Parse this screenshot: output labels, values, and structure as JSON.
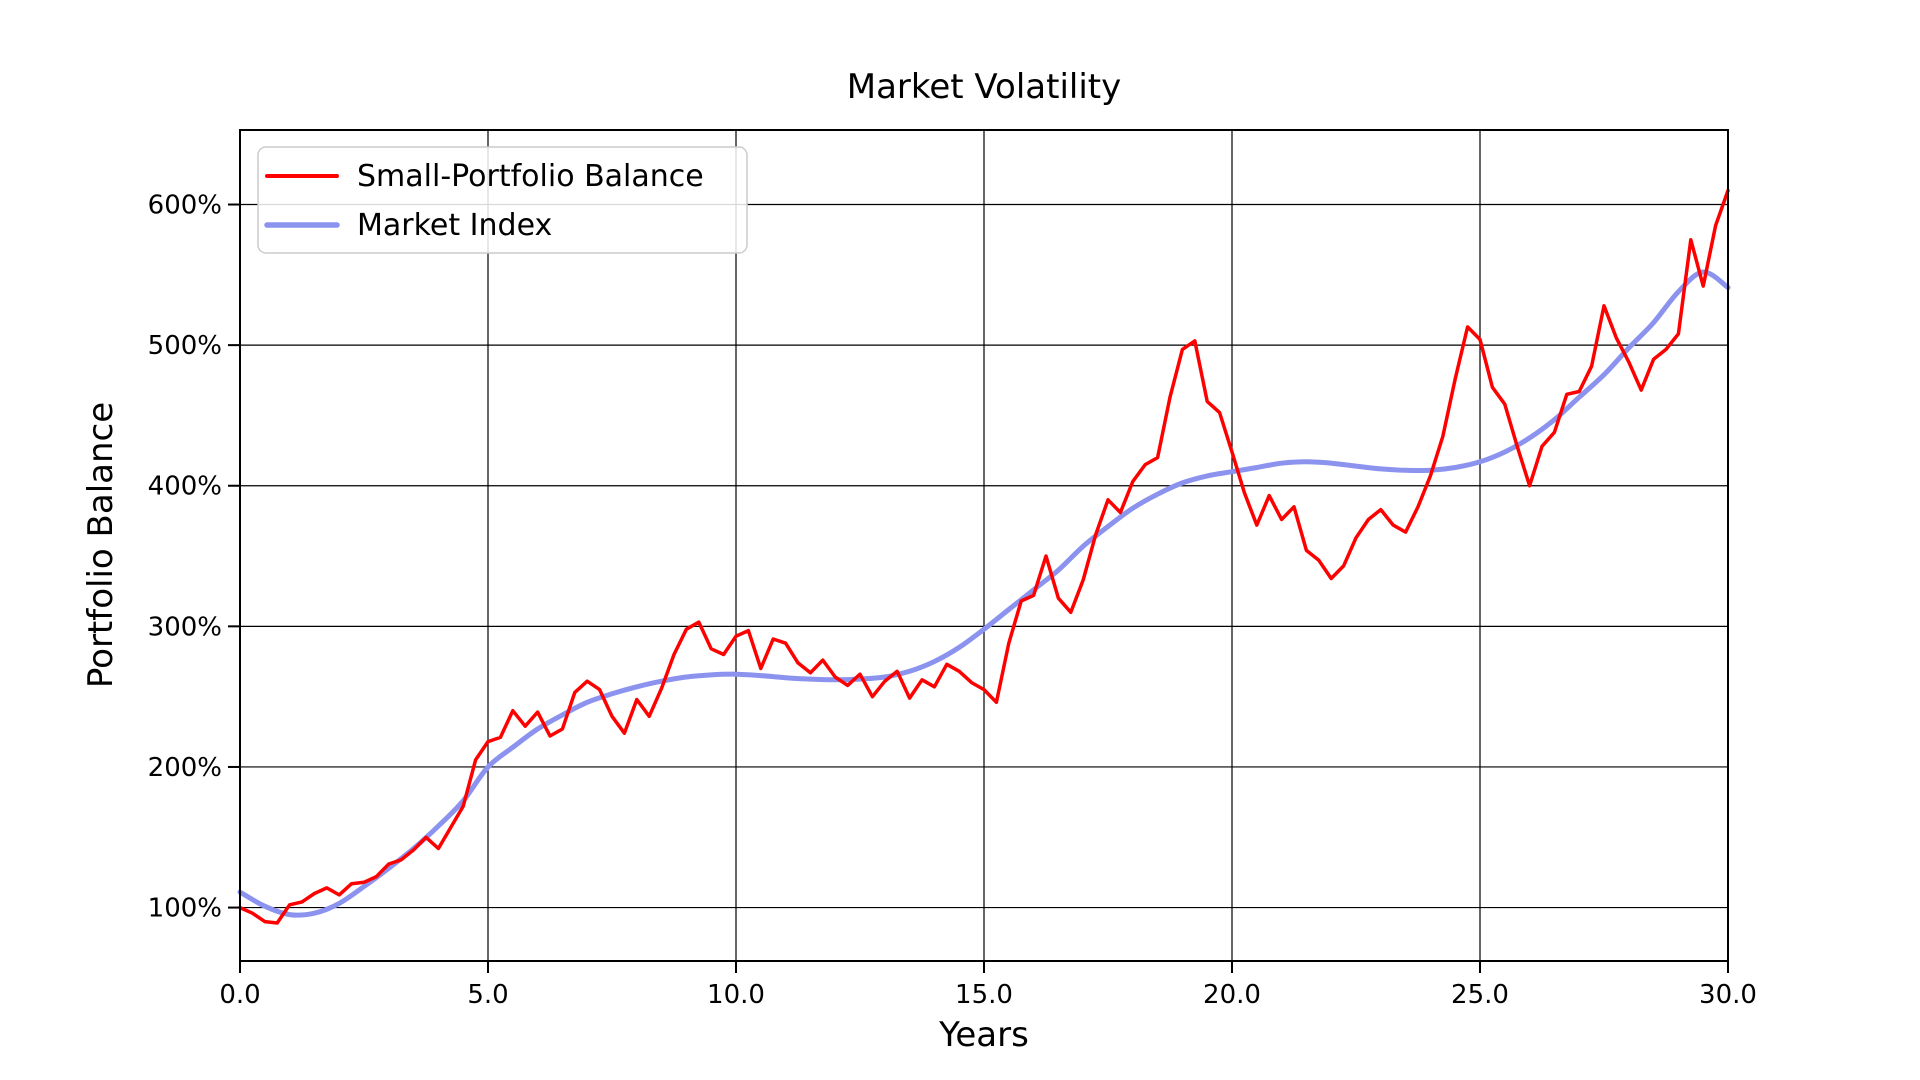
{
  "figure": {
    "background": "#ffffff"
  },
  "chart_data": {
    "type": "line",
    "title": "Market Volatility",
    "xlabel": "Years",
    "ylabel": "Portfolio Balance",
    "xlim": [
      0,
      30
    ],
    "ylim_pct": [
      62,
      653
    ],
    "x_ticks": [
      0,
      5,
      10,
      15,
      20,
      25,
      30
    ],
    "x_tick_labels": [
      "0.0",
      "5.0",
      "10.0",
      "15.0",
      "20.0",
      "25.0",
      "30.0"
    ],
    "y_ticks": [
      100,
      200,
      300,
      400,
      500,
      600
    ],
    "y_tick_labels": [
      "100%",
      "200%",
      "300%",
      "400%",
      "500%",
      "600%"
    ],
    "grid": true,
    "grid_color": "#000000",
    "axis_color": "#000000",
    "legend_position": "upper-left",
    "series": [
      {
        "name": "Small-Portfolio Balance",
        "color": "#ff0000",
        "line_width": 3.5,
        "style": "jagged",
        "x_start": 0,
        "x_step": 0.25,
        "unit": "percent",
        "values": [
          100,
          96,
          90,
          89,
          102,
          104,
          110,
          114,
          109,
          117,
          118,
          122,
          131,
          134,
          141,
          150,
          142,
          157,
          172,
          205,
          218,
          221,
          240,
          229,
          239,
          222,
          227,
          253,
          261,
          255,
          236,
          224,
          248,
          236,
          256,
          280,
          298,
          303,
          284,
          280,
          293,
          297,
          270,
          291,
          288,
          274,
          267,
          276,
          264,
          258,
          266,
          250,
          261,
          268,
          249,
          262,
          257,
          273,
          268,
          260,
          255,
          246,
          288,
          318,
          322,
          350,
          320,
          310,
          333,
          365,
          390,
          381,
          403,
          415,
          420,
          463,
          497,
          503,
          460,
          452,
          424,
          395,
          372,
          393,
          376,
          385,
          354,
          347,
          334,
          343,
          363,
          376,
          383,
          372,
          367,
          385,
          407,
          435,
          476,
          513,
          504,
          470,
          458,
          428,
          400,
          428,
          438,
          465,
          467,
          485,
          528,
          505,
          488,
          468,
          490,
          497,
          508,
          575,
          542,
          585,
          610
        ]
      },
      {
        "name": "Market Index",
        "color": "#8b93ee",
        "line_width": 5,
        "style": "smooth",
        "x_start": 0,
        "x_step": 0.5,
        "unit": "percent",
        "values": [
          111,
          101,
          95,
          96,
          103,
          115,
          128,
          142,
          158,
          176,
          200,
          214,
          227,
          237,
          246,
          252,
          257,
          261,
          264,
          265.5,
          266,
          265,
          263.5,
          262.5,
          262,
          262.5,
          264,
          268,
          275,
          285,
          298,
          312,
          326,
          340,
          357,
          371,
          384,
          394,
          402,
          407,
          410,
          413,
          416,
          417,
          416,
          414,
          412,
          411,
          411,
          413,
          417,
          424,
          434,
          447,
          463,
          479,
          498,
          516,
          538,
          552,
          541
        ]
      }
    ]
  }
}
